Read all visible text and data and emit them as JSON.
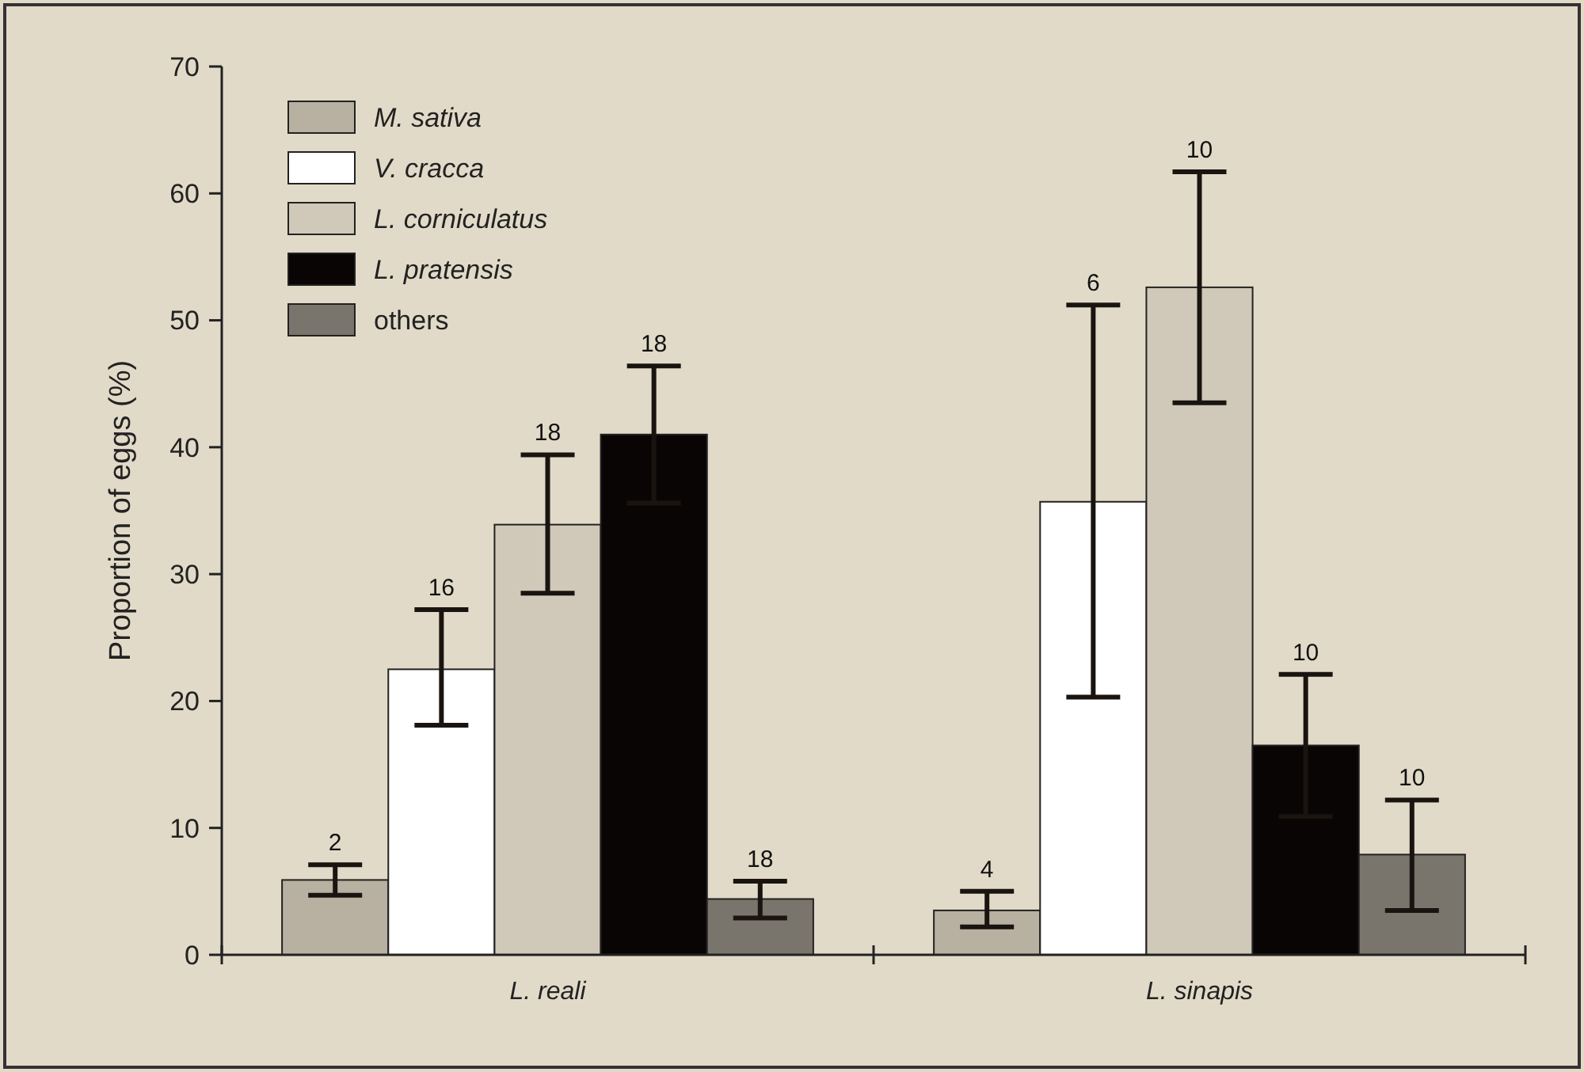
{
  "chart_data": {
    "type": "bar",
    "ylabel": "Proportion of eggs (%)",
    "categories": [
      "L. reali",
      "L. sinapis"
    ],
    "series": [
      {
        "name": "M. sativa",
        "color": "#b8b0a0",
        "values": [
          5.9,
          3.5
        ],
        "errors": [
          [
            4.7,
            7.1
          ],
          [
            2.2,
            5.0
          ]
        ]
      },
      {
        "name": "V. cracca",
        "color": "#ffffff",
        "values": [
          22.5,
          35.7
        ],
        "errors": [
          [
            18.1,
            27.2
          ],
          [
            20.3,
            51.2
          ]
        ]
      },
      {
        "name": "L. corniculatus",
        "color": "#d0c8b8",
        "values": [
          33.9,
          52.6
        ],
        "errors": [
          [
            28.5,
            39.4
          ],
          [
            43.5,
            61.7
          ]
        ]
      },
      {
        "name": "L. pratensis",
        "color": "#0a0505",
        "values": [
          41.0,
          16.5
        ],
        "errors": [
          [
            35.6,
            46.4
          ],
          [
            10.9,
            22.1
          ]
        ]
      },
      {
        "name": "others",
        "color": "#7a756c",
        "values": [
          4.4,
          7.9
        ],
        "errors": [
          [
            2.9,
            5.8
          ],
          [
            3.5,
            12.2
          ]
        ]
      }
    ],
    "annotations": [
      "2",
      "16",
      "18",
      "18",
      "18",
      "4",
      "6",
      "10",
      "10",
      "10"
    ],
    "ylim": [
      0,
      70
    ],
    "yticks": [
      0,
      10,
      20,
      30,
      40,
      50,
      60,
      70
    ],
    "legend": "top left",
    "grid": false
  }
}
